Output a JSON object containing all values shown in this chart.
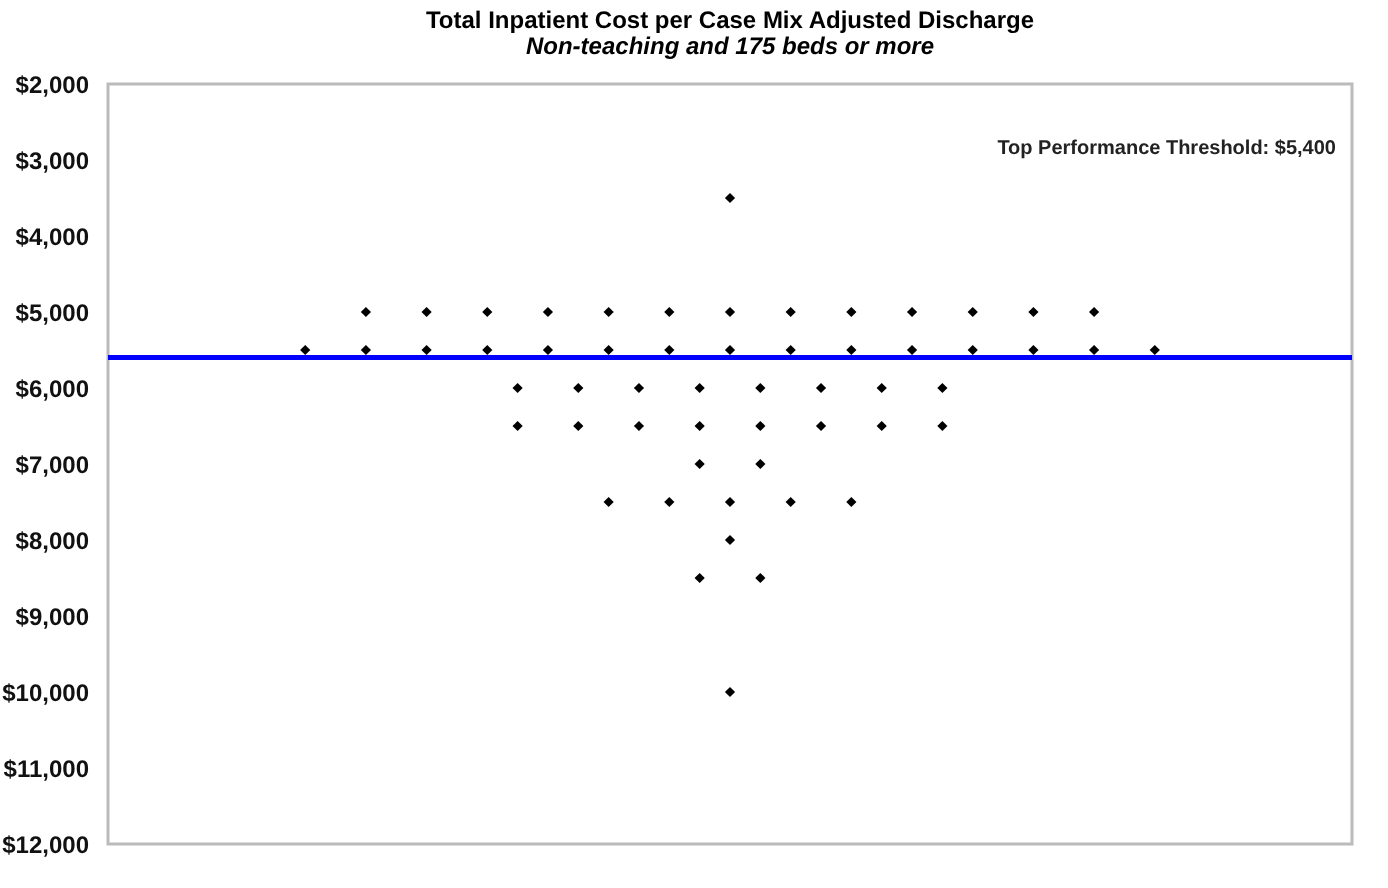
{
  "chart_data": {
    "type": "scatter",
    "title": "Total Inpatient Cost per Case Mix Adjusted Discharge",
    "subtitle": "Non-teaching and 175 beds or more",
    "categories": [
      null,
      null,
      null,
      null,
      null,
      null,
      null,
      null,
      null,
      null,
      null,
      null,
      null,
      null,
      null,
      null,
      null,
      null,
      null,
      null,
      null,
      null,
      null,
      null,
      null,
      null,
      null,
      null,
      null,
      null,
      null,
      null,
      null,
      null,
      null,
      null,
      null,
      null,
      null,
      null,
      null
    ],
    "series": [
      {
        "color": "#000000",
        "values": [
          null,
          null,
          null,
          null,
          null,
          null,
          null,
          null,
          null,
          null,
          null,
          null,
          null,
          null,
          null,
          null,
          null,
          null,
          null,
          null,
          3500,
          null,
          null,
          null,
          null,
          null,
          null,
          null,
          null,
          null,
          null,
          null,
          null,
          null,
          null,
          null,
          null,
          null,
          null,
          null,
          null
        ]
      },
      {
        "color": "#000000",
        "values": [
          null,
          null,
          null,
          null,
          null,
          null,
          null,
          null,
          5000,
          null,
          5000,
          null,
          5000,
          null,
          5000,
          null,
          5000,
          null,
          5000,
          null,
          5000,
          null,
          5000,
          null,
          5000,
          null,
          5000,
          null,
          5000,
          null,
          5000,
          null,
          5000,
          null,
          null,
          null,
          null,
          null,
          null,
          null,
          null
        ]
      },
      {
        "color": "#000000",
        "values": [
          null,
          null,
          null,
          null,
          null,
          null,
          5500,
          null,
          5500,
          null,
          5500,
          null,
          5500,
          null,
          5500,
          null,
          5500,
          null,
          5500,
          null,
          5500,
          null,
          5500,
          null,
          5500,
          null,
          5500,
          null,
          5500,
          null,
          5500,
          null,
          5500,
          null,
          5500,
          null,
          null,
          null,
          null,
          null,
          null
        ]
      },
      {
        "color": "#000000",
        "values": [
          null,
          null,
          null,
          null,
          null,
          null,
          null,
          null,
          null,
          null,
          null,
          null,
          null,
          6000,
          null,
          6000,
          null,
          6000,
          null,
          6000,
          null,
          6000,
          null,
          6000,
          null,
          6000,
          null,
          6000,
          null,
          null,
          null,
          null,
          null,
          null,
          null,
          null,
          null,
          null,
          null,
          null,
          null
        ]
      },
      {
        "color": "#000000",
        "values": [
          null,
          null,
          null,
          null,
          null,
          null,
          null,
          null,
          null,
          null,
          null,
          null,
          null,
          6500,
          null,
          6500,
          null,
          6500,
          null,
          6500,
          null,
          6500,
          null,
          6500,
          null,
          6500,
          null,
          6500,
          null,
          null,
          null,
          null,
          null,
          null,
          null,
          null,
          null,
          null,
          null,
          null,
          null
        ]
      },
      {
        "color": "#000000",
        "values": [
          null,
          null,
          null,
          null,
          null,
          null,
          null,
          null,
          null,
          null,
          null,
          null,
          null,
          null,
          null,
          null,
          null,
          null,
          null,
          7000,
          null,
          7000,
          null,
          null,
          null,
          null,
          null,
          null,
          null,
          null,
          null,
          null,
          null,
          null,
          null,
          null,
          null,
          null,
          null,
          null,
          null
        ]
      },
      {
        "color": "#000000",
        "values": [
          null,
          null,
          null,
          null,
          null,
          null,
          null,
          null,
          null,
          null,
          null,
          null,
          null,
          null,
          null,
          null,
          7500,
          null,
          7500,
          null,
          7500,
          null,
          7500,
          null,
          7500,
          null,
          null,
          null,
          null,
          null,
          null,
          null,
          null,
          null,
          null,
          null,
          null,
          null,
          null,
          null,
          null
        ]
      },
      {
        "color": "#000000",
        "values": [
          null,
          null,
          null,
          null,
          null,
          null,
          null,
          null,
          null,
          null,
          null,
          null,
          null,
          null,
          null,
          null,
          null,
          null,
          null,
          null,
          8000,
          null,
          null,
          null,
          null,
          null,
          null,
          null,
          null,
          null,
          null,
          null,
          null,
          null,
          null,
          null,
          null,
          null,
          null,
          null,
          null
        ]
      },
      {
        "color": "#000000",
        "values": [
          null,
          null,
          null,
          null,
          null,
          null,
          null,
          null,
          null,
          null,
          null,
          null,
          null,
          null,
          null,
          null,
          null,
          null,
          null,
          8500,
          null,
          8500,
          null,
          null,
          null,
          null,
          null,
          null,
          null,
          null,
          null,
          null,
          null,
          null,
          null,
          null,
          null,
          null,
          null,
          null,
          null
        ]
      },
      {
        "color": "#000000",
        "values": [
          null,
          null,
          null,
          null,
          null,
          null,
          null,
          null,
          null,
          null,
          null,
          null,
          null,
          null,
          null,
          null,
          null,
          null,
          null,
          null,
          10000,
          null,
          null,
          null,
          null,
          null,
          null,
          null,
          null,
          null,
          null,
          null,
          null,
          null,
          null,
          null,
          null,
          null,
          null,
          null,
          null
        ]
      }
    ],
    "ylim": [
      12000,
      2000
    ],
    "yticks": [
      {
        "value": 2000,
        "label": "$2,000"
      },
      {
        "value": 3000,
        "label": "$3,000"
      },
      {
        "value": 4000,
        "label": "$4,000"
      },
      {
        "value": 5000,
        "label": "$5,000"
      },
      {
        "value": 6000,
        "label": "$6,000"
      },
      {
        "value": 7000,
        "label": "$7,000"
      },
      {
        "value": 8000,
        "label": "$8,000"
      },
      {
        "value": 9000,
        "label": "$9,000"
      },
      {
        "value": 10000,
        "label": "$10,000"
      },
      {
        "value": 11000,
        "label": "$11,000"
      },
      {
        "value": 12000,
        "label": "$12,000"
      }
    ],
    "ref_lines": [
      {
        "axis": "y",
        "value": 5600,
        "color": "#0000ff"
      }
    ],
    "annotations": [
      "Top Performance Threshold:  $5,400"
    ],
    "marker": "diamond",
    "grid": false,
    "tick_labels": "y"
  }
}
